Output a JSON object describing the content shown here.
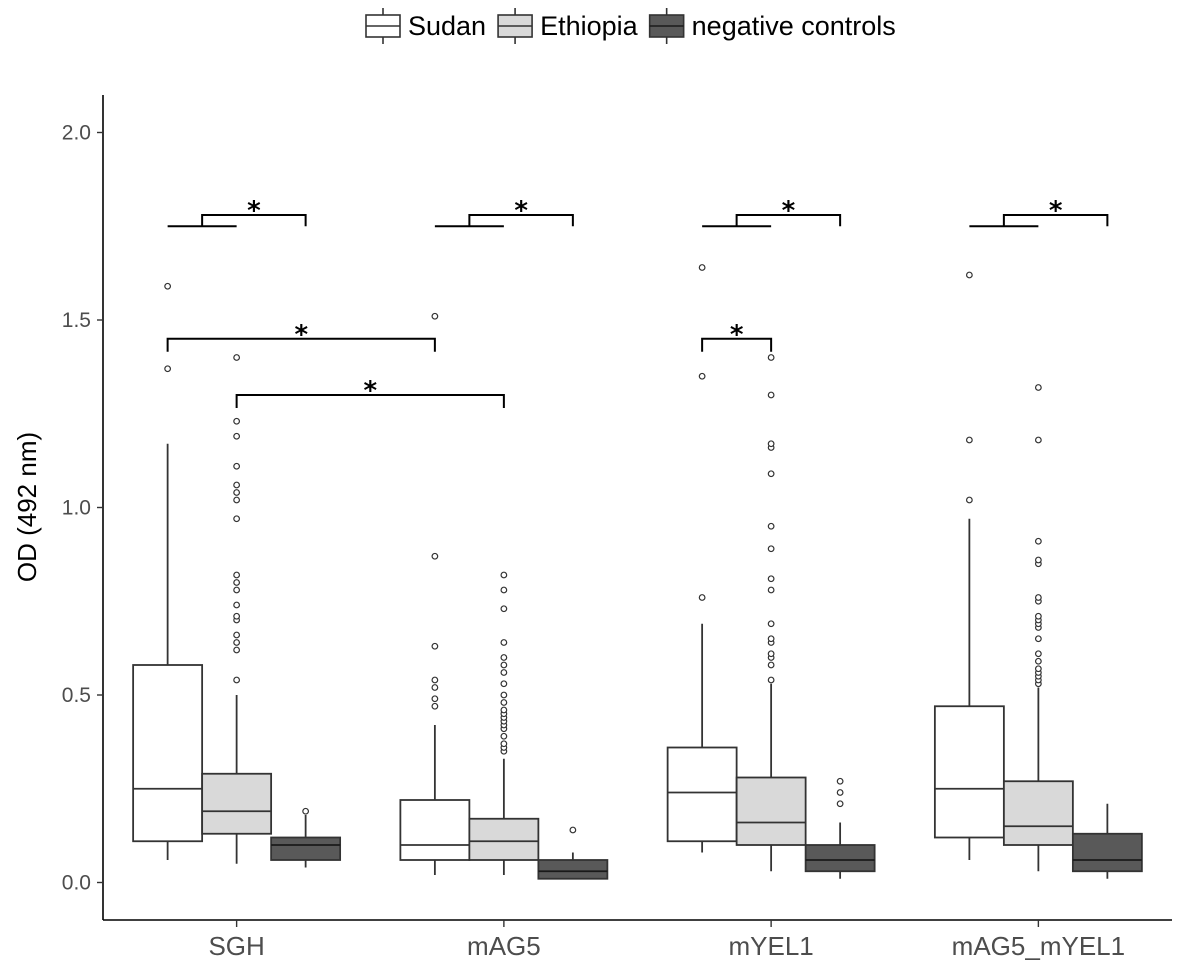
{
  "chart_data": {
    "type": "box",
    "title": "",
    "xlabel": "",
    "ylabel": "OD (492 nm)",
    "ylim": [
      -0.1,
      2.1
    ],
    "yticks": [
      "0.0",
      "0.5",
      "1.0",
      "1.5",
      "2.0"
    ],
    "categories": [
      "SGH",
      "mAG5",
      "mYEL1",
      "mAG5_mYEL1"
    ],
    "grid": false,
    "legend_position": "top",
    "series": [
      {
        "name": "Sudan",
        "fill": "#ffffff",
        "median_color": "#333333",
        "boxes": [
          {
            "lower_whisker": 0.06,
            "q1": 0.11,
            "median": 0.25,
            "q3": 0.58,
            "upper_whisker": 1.17,
            "outliers": [
              1.37,
              1.59
            ]
          },
          {
            "lower_whisker": 0.02,
            "q1": 0.06,
            "median": 0.1,
            "q3": 0.22,
            "upper_whisker": 0.42,
            "outliers": [
              0.47,
              0.49,
              0.52,
              0.54,
              0.63,
              0.87,
              1.51
            ]
          },
          {
            "lower_whisker": 0.08,
            "q1": 0.11,
            "median": 0.24,
            "q3": 0.36,
            "upper_whisker": 0.69,
            "outliers": [
              0.76,
              1.35,
              1.64
            ]
          },
          {
            "lower_whisker": 0.06,
            "q1": 0.12,
            "median": 0.25,
            "q3": 0.47,
            "upper_whisker": 0.97,
            "outliers": [
              1.02,
              1.18,
              1.62
            ]
          }
        ]
      },
      {
        "name": "Ethiopia",
        "fill": "#d9d9d9",
        "median_color": "#333333",
        "boxes": [
          {
            "lower_whisker": 0.05,
            "q1": 0.13,
            "median": 0.19,
            "q3": 0.29,
            "upper_whisker": 0.5,
            "outliers": [
              0.54,
              0.62,
              0.64,
              0.66,
              0.7,
              0.71,
              0.74,
              0.78,
              0.8,
              0.82,
              0.97,
              1.02,
              1.04,
              1.06,
              1.11,
              1.19,
              1.23,
              1.4
            ]
          },
          {
            "lower_whisker": 0.02,
            "q1": 0.06,
            "median": 0.11,
            "q3": 0.17,
            "upper_whisker": 0.33,
            "outliers": [
              0.35,
              0.36,
              0.37,
              0.39,
              0.41,
              0.42,
              0.43,
              0.44,
              0.45,
              0.46,
              0.48,
              0.5,
              0.53,
              0.56,
              0.58,
              0.6,
              0.64,
              0.73,
              0.78,
              0.82
            ]
          },
          {
            "lower_whisker": 0.03,
            "q1": 0.1,
            "median": 0.16,
            "q3": 0.28,
            "upper_whisker": 0.53,
            "outliers": [
              0.54,
              0.58,
              0.6,
              0.61,
              0.64,
              0.65,
              0.69,
              0.78,
              0.81,
              0.89,
              0.95,
              1.09,
              1.16,
              1.17,
              1.3,
              1.4
            ]
          },
          {
            "lower_whisker": 0.03,
            "q1": 0.1,
            "median": 0.15,
            "q3": 0.27,
            "upper_whisker": 0.52,
            "outliers": [
              0.53,
              0.54,
              0.55,
              0.56,
              0.57,
              0.59,
              0.61,
              0.65,
              0.68,
              0.69,
              0.7,
              0.71,
              0.75,
              0.76,
              0.85,
              0.86,
              0.91,
              1.18,
              1.32
            ]
          }
        ]
      },
      {
        "name": "negative controls",
        "fill": "#595959",
        "median_color": "#1a1a1a",
        "boxes": [
          {
            "lower_whisker": 0.04,
            "q1": 0.06,
            "median": 0.1,
            "q3": 0.12,
            "upper_whisker": 0.18,
            "outliers": [
              0.19
            ]
          },
          {
            "lower_whisker": 0.01,
            "q1": 0.01,
            "median": 0.03,
            "q3": 0.06,
            "upper_whisker": 0.08,
            "outliers": [
              0.14
            ]
          },
          {
            "lower_whisker": 0.01,
            "q1": 0.03,
            "median": 0.06,
            "q3": 0.1,
            "upper_whisker": 0.16,
            "outliers": [
              0.21,
              0.24,
              0.27
            ]
          },
          {
            "lower_whisker": 0.01,
            "q1": 0.03,
            "median": 0.06,
            "q3": 0.13,
            "upper_whisker": 0.21,
            "outliers": []
          }
        ]
      }
    ],
    "significance": [
      {
        "type": "nested",
        "category": 0,
        "y_low": 1.75,
        "y_high": 1.78,
        "label": "*"
      },
      {
        "type": "nested",
        "category": 1,
        "y_low": 1.75,
        "y_high": 1.78,
        "label": "*"
      },
      {
        "type": "nested",
        "category": 2,
        "y_low": 1.75,
        "y_high": 1.78,
        "label": "*"
      },
      {
        "type": "nested",
        "category": 3,
        "y_low": 1.75,
        "y_high": 1.78,
        "label": "*"
      },
      {
        "type": "bracket",
        "from": [
          0,
          0
        ],
        "to": [
          1,
          0
        ],
        "y": 1.45,
        "label": "*"
      },
      {
        "type": "bracket",
        "from": [
          0,
          1
        ],
        "to": [
          1,
          1
        ],
        "y": 1.3,
        "label": "*"
      },
      {
        "type": "bracket",
        "from": [
          2,
          0
        ],
        "to": [
          2,
          1
        ],
        "y": 1.45,
        "label": "*"
      }
    ]
  }
}
